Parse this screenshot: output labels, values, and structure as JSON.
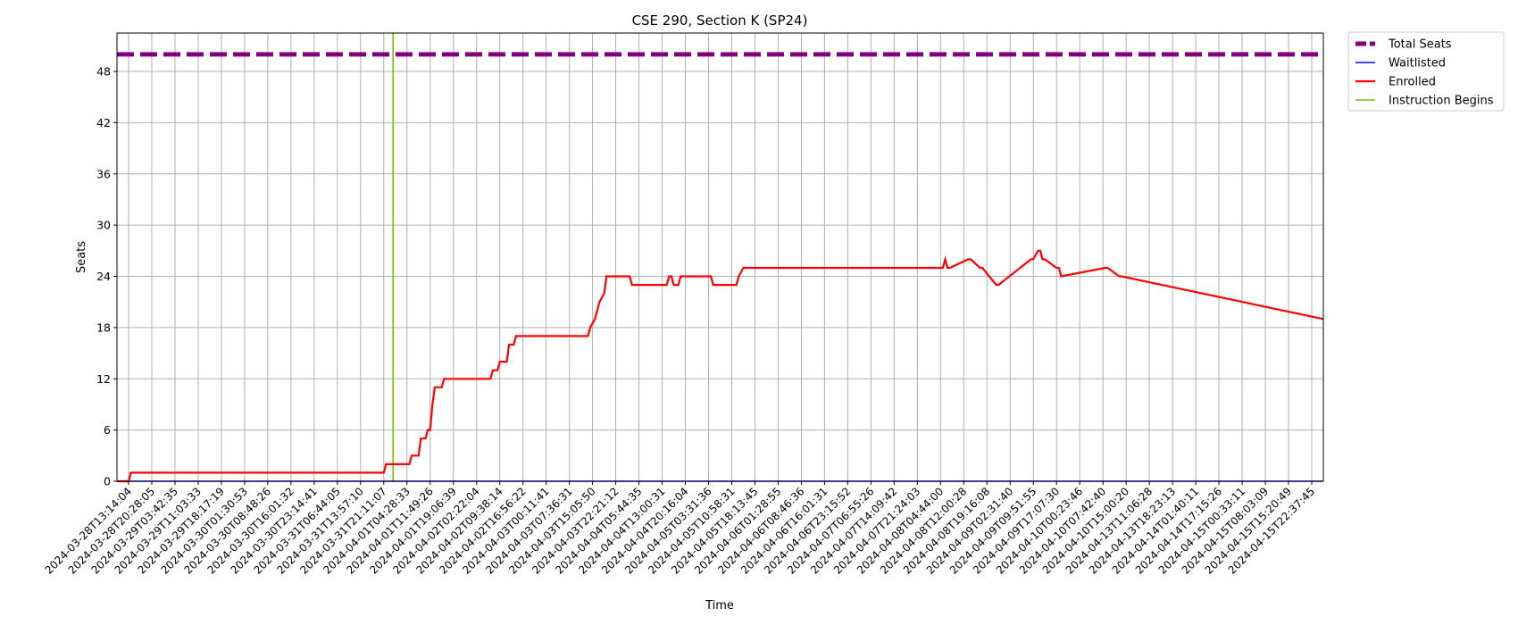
{
  "chart_data": {
    "type": "line",
    "title": "CSE 290, Section K (SP24)",
    "xlabel": "Time",
    "ylabel": "Seats",
    "ylim": [
      0,
      52.5
    ],
    "yticks": [
      0,
      6,
      12,
      18,
      24,
      30,
      36,
      42,
      48
    ],
    "grid": true,
    "legend_position": "outside-top-right",
    "xticks": [
      "2024-03-28T13:14:04",
      "2024-03-28T20:28:05",
      "2024-03-29T03:42:35",
      "2024-03-29T11:03:33",
      "2024-03-29T18:17:19",
      "2024-03-30T01:30:53",
      "2024-03-30T08:48:26",
      "2024-03-30T16:01:32",
      "2024-03-30T23:14:41",
      "2024-03-31T06:44:05",
      "2024-03-31T13:57:10",
      "2024-03-31T21:11:07",
      "2024-04-01T04:28:33",
      "2024-04-01T11:49:26",
      "2024-04-01T19:06:39",
      "2024-04-02T02:22:04",
      "2024-04-02T09:38:14",
      "2024-04-02T16:56:22",
      "2024-04-03T00:11:41",
      "2024-04-03T07:36:31",
      "2024-04-03T15:05:50",
      "2024-04-03T22:21:12",
      "2024-04-04T05:44:35",
      "2024-04-04T13:00:31",
      "2024-04-04T20:16:04",
      "2024-04-05T03:31:36",
      "2024-04-05T10:58:31",
      "2024-04-05T18:13:45",
      "2024-04-06T01:28:55",
      "2024-04-06T08:46:36",
      "2024-04-06T16:01:31",
      "2024-04-06T23:15:52",
      "2024-04-07T06:55:26",
      "2024-04-07T14:09:42",
      "2024-04-07T21:24:03",
      "2024-04-08T04:44:00",
      "2024-04-08T12:00:28",
      "2024-04-08T19:16:08",
      "2024-04-09T02:31:40",
      "2024-04-09T09:51:55",
      "2024-04-09T17:07:30",
      "2024-04-10T00:23:46",
      "2024-04-10T07:42:40",
      "2024-04-10T15:00:20",
      "2024-04-13T11:06:28",
      "2024-04-13T18:23:13",
      "2024-04-14T01:40:11",
      "2024-04-14T17:15:26",
      "2024-04-15T00:33:11",
      "2024-04-15T08:03:09",
      "2024-04-15T15:20:49",
      "2024-04-15T22:37:45"
    ],
    "x_domain": [
      -0.5,
      51.5
    ],
    "series": [
      {
        "name": "Total Seats",
        "color": "#800080",
        "style": "dashed",
        "x": [
          -0.5,
          51.5
        ],
        "y": [
          50,
          50
        ]
      },
      {
        "name": "Waitlisted",
        "color": "#0000ff",
        "style": "solid",
        "x": [
          -0.5,
          51.5
        ],
        "y": [
          0,
          0
        ]
      },
      {
        "name": "Enrolled",
        "color": "#ff0000",
        "style": "step",
        "x": [
          -0.5,
          0,
          0.1,
          11,
          11.1,
          12.1,
          12.2,
          12.5,
          12.6,
          12.8,
          12.9,
          13.0,
          13.1,
          13.2,
          13.5,
          13.6,
          15.6,
          15.7,
          15.9,
          16.0,
          16.3,
          16.4,
          16.6,
          16.7,
          19.8,
          19.9,
          20.1,
          20.2,
          20.3,
          20.5,
          20.6,
          21.6,
          21.7,
          23.2,
          23.3,
          23.4,
          23.5,
          23.7,
          23.8,
          25.1,
          25.2,
          26.2,
          26.3,
          26.5,
          35.1,
          35.2,
          35.3,
          35.4,
          36.2,
          36.3,
          36.7,
          36.8,
          37.4,
          37.5,
          38.9,
          39.0,
          39.2,
          39.3,
          39.4,
          39.5,
          40.0,
          40.1,
          40.2,
          42.1,
          42.2,
          42.7,
          42.8,
          51.5
        ],
        "y": [
          0,
          0,
          1,
          1,
          2,
          2,
          3,
          3,
          5,
          5,
          6,
          6,
          9,
          11,
          11,
          12,
          12,
          13,
          13,
          14,
          14,
          16,
          16,
          17,
          17,
          18,
          19,
          20,
          21,
          22,
          24,
          24,
          23,
          23,
          24,
          24,
          23,
          23,
          24,
          24,
          23,
          23,
          24,
          25,
          25,
          26,
          25,
          25,
          26,
          26,
          25,
          25,
          23,
          23,
          26,
          26,
          27,
          27,
          26,
          26,
          25,
          25,
          24,
          25,
          25,
          24,
          24,
          19
        ]
      },
      {
        "name": "Instruction Begins",
        "color": "#7fbf00",
        "style": "vline",
        "x": [
          11.4,
          11.4
        ],
        "y": [
          0,
          52.5
        ]
      }
    ]
  }
}
